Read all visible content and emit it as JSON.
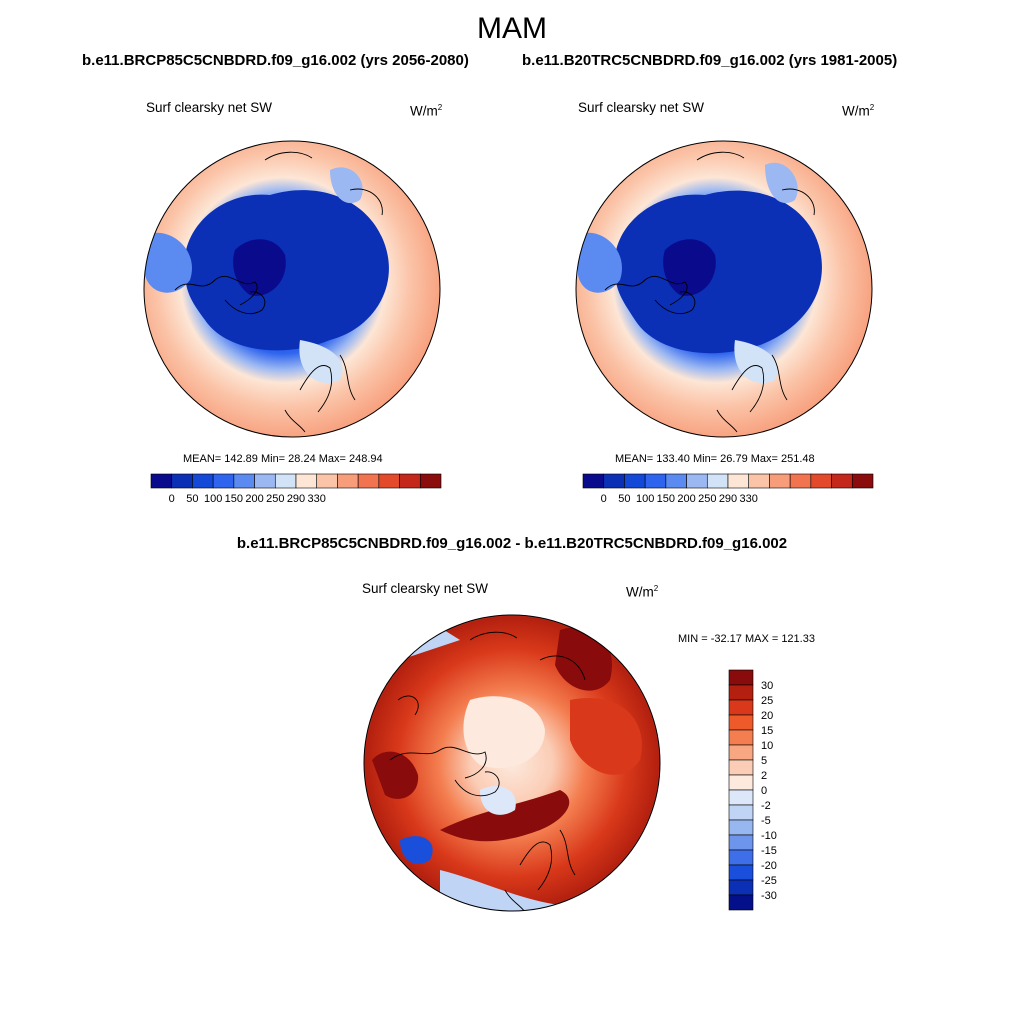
{
  "season": "MAM",
  "left_panel": {
    "case_title": "b.e11.BRCP85C5CNBDRD.f09_g16.002 (yrs 2056-2080)",
    "variable": "Surf clearsky net SW",
    "units_base": "W/m",
    "units_exp": "2",
    "stats": "MEAN= 142.89  Min=  28.24  Max= 248.94"
  },
  "right_panel": {
    "case_title": "b.e11.B20TRC5CNBDRD.f09_g16.002 (yrs 1981-2005)",
    "variable": "Surf clearsky net SW",
    "units_base": "W/m",
    "units_exp": "2",
    "stats": "MEAN= 133.40  Min=  26.79  Max= 251.48"
  },
  "diff_panel": {
    "title": "b.e11.BRCP85C5CNBDRD.f09_g16.002 - b.e11.B20TRC5CNBDRD.f09_g16.002",
    "variable": "Surf clearsky net SW",
    "units_base": "W/m",
    "units_exp": "2",
    "stats": "MIN = -32.17 MAX = 121.33"
  },
  "abs_colorbar": {
    "labels": [
      "0",
      "50",
      "100",
      "150",
      "200",
      "250",
      "290",
      "330"
    ],
    "colors": [
      "#0a0a8c",
      "#0b2fb5",
      "#1448d6",
      "#2e64ee",
      "#5b8af0",
      "#9cb8f2",
      "#d2e3f8",
      "#fde6d6",
      "#fbc4a8",
      "#f79d7a",
      "#f2734f",
      "#e34a2c",
      "#c4281a",
      "#8a0c0c"
    ]
  },
  "diff_colorbar": {
    "labels": [
      "30",
      "25",
      "20",
      "15",
      "10",
      "5",
      "2",
      "0",
      "-2",
      "-5",
      "-10",
      "-15",
      "-20",
      "-25",
      "-30"
    ],
    "colors": [
      "#8a0b0b",
      "#b3200f",
      "#d9391a",
      "#ef5a2a",
      "#f47e50",
      "#f8a783",
      "#fbcdb6",
      "#fde9dd",
      "#dce8fa",
      "#c0d5f6",
      "#97b7f1",
      "#6d95ec",
      "#3e6fe8",
      "#1a4fdc",
      "#0b2fb5",
      "#04108a"
    ]
  }
}
